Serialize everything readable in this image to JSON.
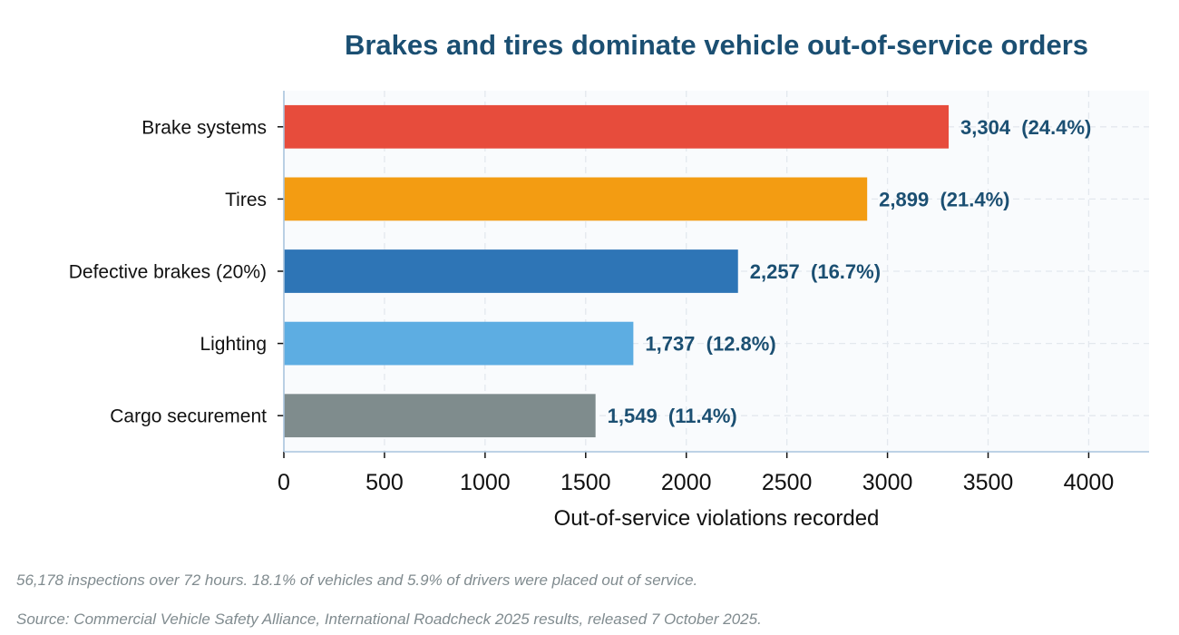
{
  "chart_data": {
    "type": "bar",
    "orientation": "horizontal",
    "title": "Brakes and tires dominate vehicle out-of-service orders",
    "xlabel": "Out-of-service violations recorded",
    "ylabel": "",
    "xlim": [
      0,
      4300
    ],
    "xticks": [
      0,
      500,
      1000,
      1500,
      2000,
      2500,
      3000,
      3500,
      4000
    ],
    "grid": true,
    "categories": [
      "Brake systems",
      "Tires",
      "Defective brakes (20%)",
      "Lighting",
      "Cargo securement"
    ],
    "values": [
      3304,
      2899,
      2257,
      1737,
      1549
    ],
    "data_labels": [
      "3,304  (24.4%)",
      "2,899  (21.4%)",
      "2,257  (16.7%)",
      "1,737  (12.8%)",
      "1,549  (11.4%)"
    ],
    "colors": [
      "#e74c3c",
      "#f39c12",
      "#2e75b6",
      "#5dade2",
      "#7f8c8d"
    ]
  },
  "footnotes": {
    "note": "56,178 inspections over 72 hours. 18.1% of vehicles and 5.9% of drivers were placed out of service.",
    "source": "Source: Commercial Vehicle Safety Alliance, International Roadcheck 2025 results, released 7 October 2025."
  }
}
